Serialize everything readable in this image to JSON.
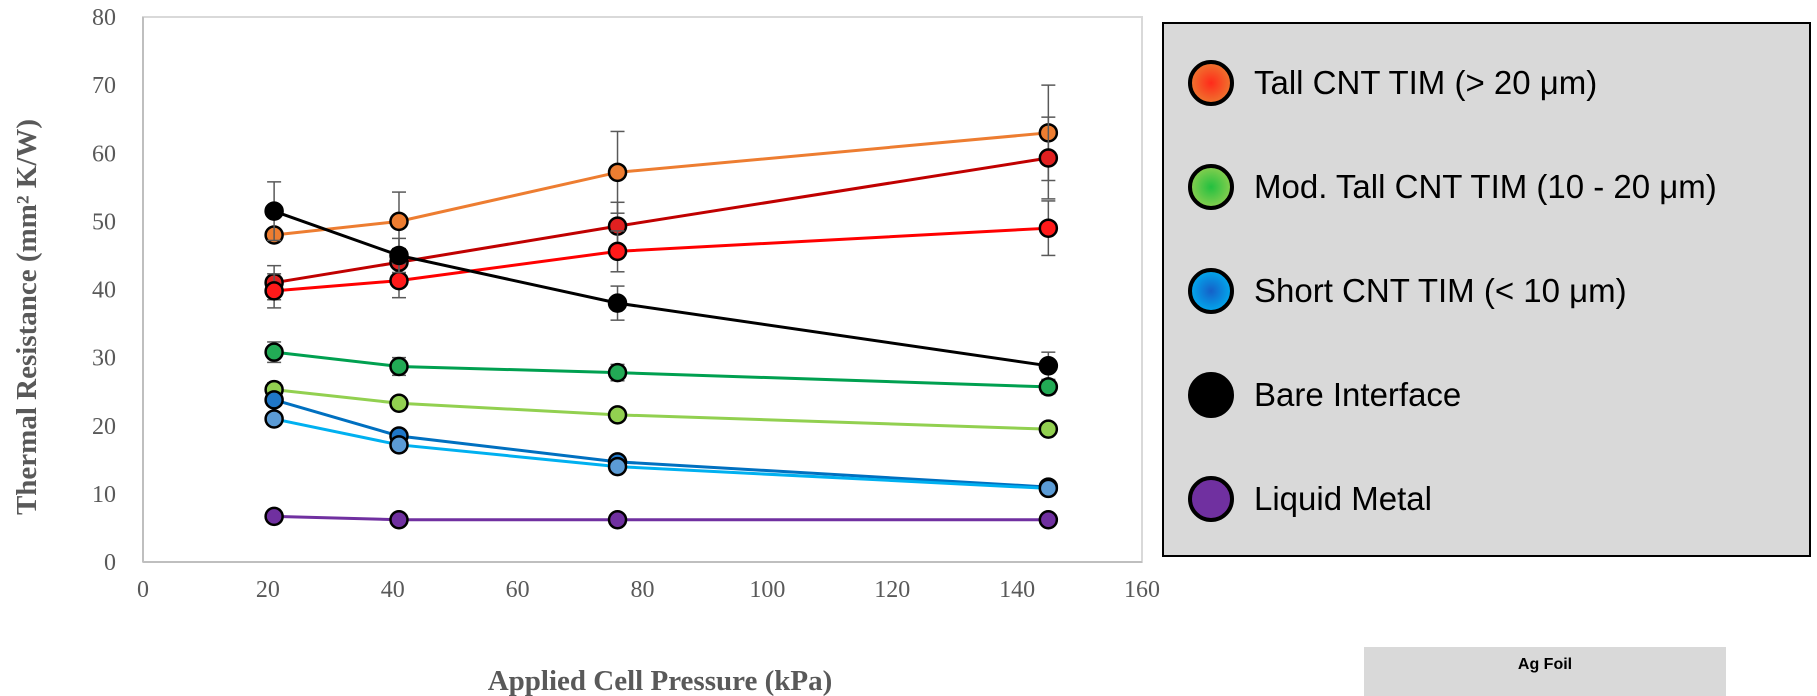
{
  "chart_data": {
    "type": "line",
    "xlabel": "Applied Cell Pressure (kPa)",
    "ylabel": "Thermal Resistance (mm² K/W)",
    "xlim": [
      0,
      160
    ],
    "ylim": [
      0,
      80
    ],
    "xticks": [
      0,
      20,
      40,
      60,
      80,
      100,
      120,
      140,
      160
    ],
    "yticks": [
      0,
      10,
      20,
      30,
      40,
      50,
      60,
      70,
      80
    ],
    "grid": false,
    "legend_position": "right",
    "series": [
      {
        "color": "#ed7d31",
        "marker": "#ed7d31",
        "x": [
          21,
          41,
          76,
          145
        ],
        "y": [
          48,
          50,
          57.2,
          63
        ],
        "err": [
          0,
          4.3,
          6,
          7
        ]
      },
      {
        "color": "#c00000",
        "marker": "#e02020",
        "x": [
          21,
          41,
          76,
          145
        ],
        "y": [
          41,
          44,
          49.3,
          59.3
        ],
        "err": [
          2.5,
          2,
          3.5,
          6
        ]
      },
      {
        "color": "#ff0000",
        "marker": "#ff1a1a",
        "x": [
          21,
          41,
          76,
          145
        ],
        "y": [
          39.8,
          41.3,
          45.6,
          49
        ],
        "err": [
          2.5,
          2.5,
          3,
          4
        ]
      },
      {
        "color": "#000000",
        "marker": "#000000",
        "x": [
          21,
          41,
          76,
          145
        ],
        "y": [
          51.5,
          45,
          38,
          28.8
        ],
        "err": [
          4.3,
          2.5,
          2.5,
          2
        ]
      },
      {
        "color": "#00a050",
        "marker": "#22aa55",
        "x": [
          21,
          41,
          76,
          145
        ],
        "y": [
          30.8,
          28.7,
          27.8,
          25.7
        ],
        "err": [
          1.5,
          1.3,
          1.2,
          1
        ]
      },
      {
        "color": "#92d050",
        "marker": "#92d050",
        "x": [
          21,
          41,
          76,
          145
        ],
        "y": [
          25.3,
          23.3,
          21.6,
          19.5
        ],
        "err": [
          1,
          0.8,
          0.8,
          0.7
        ]
      },
      {
        "color": "#0070c0",
        "marker": "#1f77c8",
        "x": [
          21,
          41,
          76,
          145
        ],
        "y": [
          23.8,
          18.5,
          14.7,
          11
        ],
        "err": [
          0.8,
          0.8,
          0.6,
          0.5
        ]
      },
      {
        "color": "#00b0f0",
        "marker": "#5b9bd5",
        "x": [
          21,
          41,
          76,
          145
        ],
        "y": [
          21,
          17.2,
          14,
          10.8
        ],
        "err": [
          0.6,
          0.6,
          0.5,
          0.5
        ]
      },
      {
        "color": "#7030a0",
        "marker": "#7030a0",
        "x": [
          21,
          41,
          76,
          145
        ],
        "y": [
          6.7,
          6.2,
          6.2,
          6.2
        ],
        "err": [
          0,
          0,
          0,
          0
        ]
      }
    ]
  },
  "legend": {
    "items": [
      {
        "label": "Tall CNT TIM (> 20 μm)",
        "color_center": "#ff2a1a",
        "color_edge": "#ed7d31"
      },
      {
        "label": "Mod. Tall CNT TIM (10 - 20 μm)",
        "color_center": "#22c040",
        "color_edge": "#92d050"
      },
      {
        "label": "Short CNT TIM (< 10 μm)",
        "color_center": "#1560c8",
        "color_edge": "#00b0f0"
      },
      {
        "label": "Bare Interface",
        "color_center": "#000000",
        "color_edge": "#000000"
      },
      {
        "label": "Liquid Metal",
        "color_center": "#7030a0",
        "color_edge": "#7030a0"
      }
    ]
  },
  "inset": {
    "label": "Ag Foil"
  }
}
